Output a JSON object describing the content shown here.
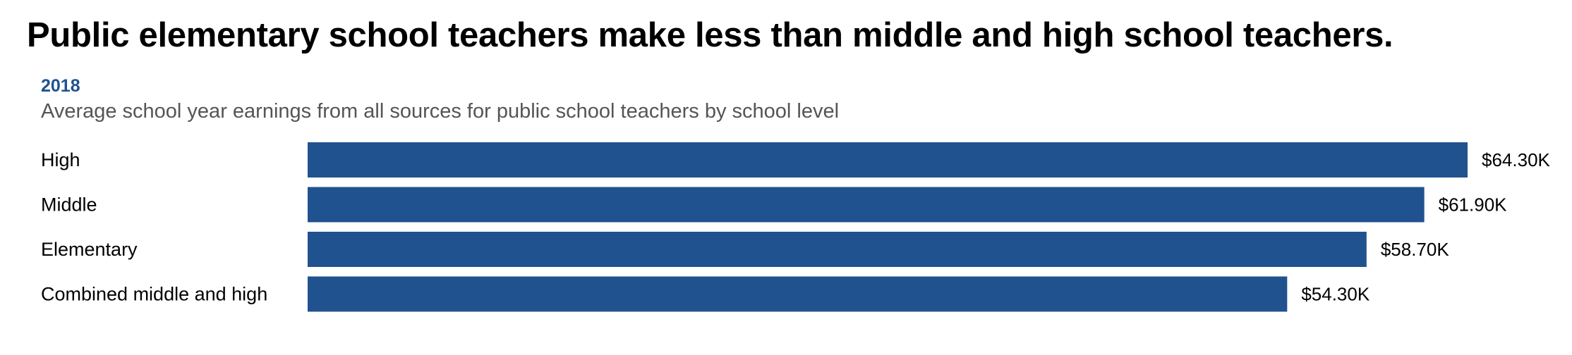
{
  "header": {
    "title": "Public elementary school teachers make less than middle and high school teachers.",
    "year": "2018",
    "subtitle": "Average school year earnings from all sources for public school teachers by school level"
  },
  "colors": {
    "bar": "#20528f",
    "year_text": "#20528f"
  },
  "chart_data": {
    "type": "bar",
    "orientation": "horizontal",
    "title": "Public elementary school teachers make less than middle and high school teachers.",
    "subtitle": "Average school year earnings from all sources for public school teachers by school level",
    "categories": [
      "High",
      "Middle",
      "Elementary",
      "Combined middle and high"
    ],
    "values": [
      64300,
      61900,
      58700,
      54300
    ],
    "value_labels": [
      "$64.30K",
      "$61.90K",
      "$58.70K",
      "$54.30K"
    ],
    "xlim": [
      0,
      64300
    ],
    "grid": false,
    "legend": "none"
  }
}
